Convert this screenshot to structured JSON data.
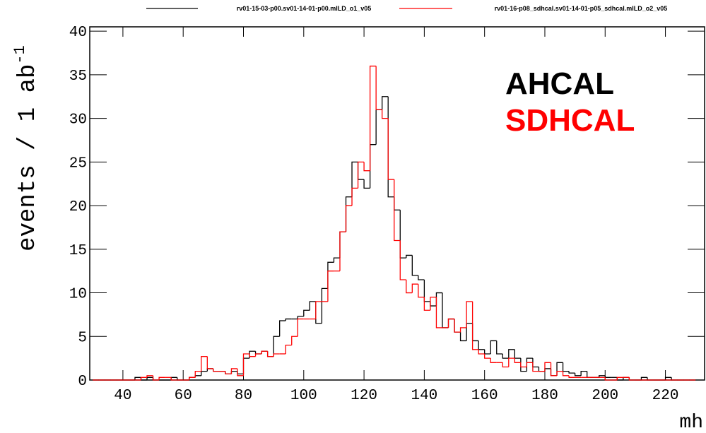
{
  "chart_data": {
    "type": "histogram",
    "xlabel": "mh",
    "ylabel": "events / 1 ab",
    "ylabel_superscript": "-1",
    "annotations": [
      {
        "text": "AHCAL",
        "color": "#000000"
      },
      {
        "text": "SDHCAL",
        "color": "#ff0000"
      }
    ],
    "bins": [
      30,
      32,
      34,
      36,
      38,
      40,
      42,
      44,
      46,
      48,
      50,
      52,
      54,
      56,
      58,
      60,
      62,
      64,
      66,
      68,
      70,
      72,
      74,
      76,
      78,
      80,
      82,
      84,
      86,
      88,
      90,
      92,
      94,
      96,
      98,
      100,
      102,
      104,
      106,
      108,
      110,
      112,
      114,
      116,
      118,
      120,
      122,
      124,
      126,
      128,
      130,
      132,
      134,
      136,
      138,
      140,
      142,
      144,
      146,
      148,
      150,
      152,
      154,
      156,
      158,
      160,
      162,
      164,
      166,
      168,
      170,
      172,
      174,
      176,
      178,
      180,
      182,
      184,
      186,
      188,
      190,
      192,
      194,
      196,
      198,
      200,
      202,
      204,
      206,
      208,
      210,
      212,
      214,
      216,
      218,
      220,
      222,
      224,
      226,
      228,
      230
    ],
    "series": [
      {
        "name": "rv01-15-03-p00.sv01-14-01-p00.mILD_o1_v05",
        "color": "#000000",
        "values": [
          0,
          0,
          0,
          0,
          0,
          0,
          0,
          0.3,
          0,
          0.3,
          0,
          0,
          0,
          0.3,
          0,
          0,
          0.3,
          0.5,
          1,
          1.3,
          1,
          1,
          0.7,
          1,
          0.7,
          2.5,
          3.3,
          3,
          3.3,
          2.7,
          5,
          6.8,
          7,
          7,
          7.3,
          8,
          9,
          6.5,
          10.5,
          13.5,
          14,
          17,
          21,
          25,
          23,
          22,
          27,
          31,
          32.5,
          21,
          19.5,
          14,
          14.3,
          12,
          11.5,
          9,
          8.5,
          10,
          6,
          7,
          5.5,
          4.5,
          6.5,
          4.5,
          3.5,
          3,
          4.5,
          3,
          2.5,
          3.5,
          2.5,
          1,
          2.5,
          1.5,
          1,
          1.3,
          0.5,
          2,
          1,
          0.8,
          0.5,
          1,
          0.3,
          0.3,
          0.5,
          0.3,
          0.3,
          0,
          0.3,
          0,
          0,
          0.3,
          0,
          0,
          0,
          0.3,
          0,
          0,
          0,
          0
        ]
      },
      {
        "name": "rv01-16-p08_sdhcal.sv01-14-01-p05_sdhcal.mILD_o2_v05",
        "color": "#ff0000",
        "values": [
          0,
          0,
          0,
          0,
          0,
          0,
          0,
          0,
          0.3,
          0.5,
          0,
          0.3,
          0.3,
          0,
          0,
          0,
          0.3,
          1,
          2.7,
          1.3,
          1,
          1,
          0.7,
          1.3,
          0.5,
          3,
          2.7,
          3,
          3.3,
          2.7,
          3,
          3,
          4,
          5,
          7,
          7,
          7,
          9,
          9,
          12.5,
          12.5,
          17,
          20,
          22,
          25,
          24,
          36,
          31,
          30,
          23,
          16,
          11.5,
          10,
          11,
          9.5,
          8,
          9.5,
          6,
          6,
          7,
          5.5,
          6,
          9,
          3.5,
          3,
          2.5,
          2,
          2,
          1.5,
          2.5,
          2,
          1.5,
          2,
          1,
          1,
          2,
          0.5,
          1,
          0.5,
          0.3,
          0.3,
          0.3,
          0.3,
          0.3,
          0.3,
          0,
          0,
          0.3,
          0.3,
          0,
          0,
          0,
          0,
          0,
          0,
          0,
          0,
          0,
          0,
          0
        ]
      }
    ],
    "xlim": [
      29,
      233
    ],
    "ylim": [
      0,
      40.5
    ],
    "xticks": [
      40,
      60,
      80,
      100,
      120,
      140,
      160,
      180,
      200,
      220
    ],
    "yticks": [
      0,
      5,
      10,
      15,
      20,
      25,
      30,
      35,
      40
    ]
  }
}
